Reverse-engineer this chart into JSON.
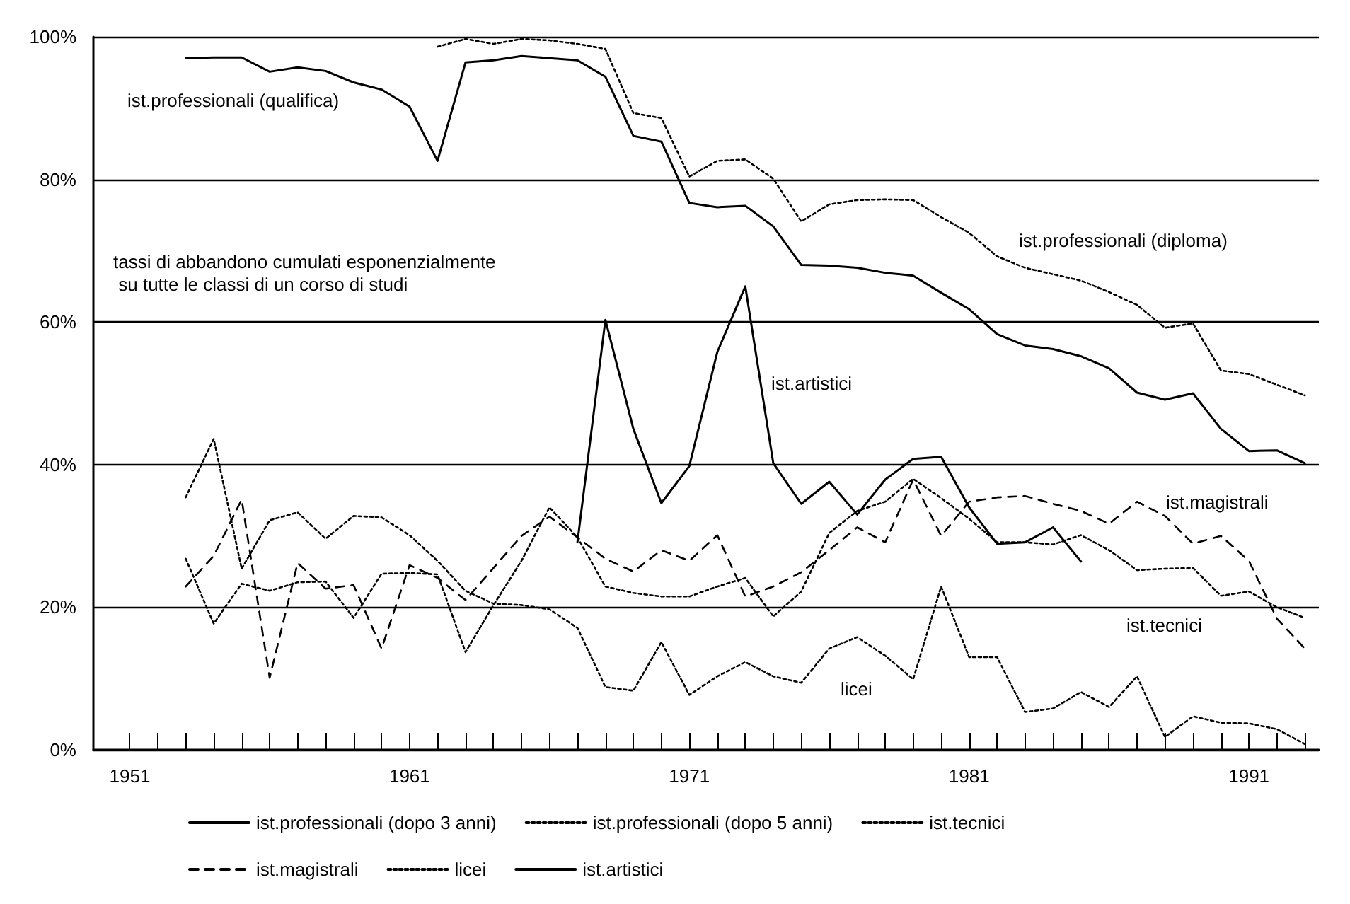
{
  "chart_data": {
    "type": "line",
    "x": [
      1953,
      1954,
      1955,
      1956,
      1957,
      1958,
      1959,
      1960,
      1961,
      1962,
      1963,
      1964,
      1965,
      1966,
      1967,
      1968,
      1969,
      1970,
      1971,
      1972,
      1973,
      1974,
      1975,
      1976,
      1977,
      1978,
      1979,
      1980,
      1981,
      1982,
      1983,
      1984,
      1985,
      1986,
      1987,
      1988,
      1989,
      1990,
      1991,
      1992,
      1993
    ],
    "series": [
      {
        "name": "ist.professionali (dopo 3 anni)",
        "color": "#000000",
        "line_style": "solid",
        "values": [
          97.0,
          97.1,
          97.1,
          95.1,
          95.7,
          95.2,
          93.6,
          92.6,
          90.2,
          82.6,
          96.4,
          96.7,
          97.3,
          97.0,
          96.7,
          94.4,
          86.1,
          85.3,
          76.7,
          76.1,
          76.3,
          73.4,
          68.0,
          67.9,
          67.6,
          66.9,
          66.5,
          64.1,
          61.8,
          58.3,
          56.7,
          56.2,
          55.2,
          53.5,
          50.1,
          49.1,
          50.0,
          45.0,
          41.9,
          42.0,
          40.2
        ]
      },
      {
        "name": "ist.professionali (dopo 5 anni)",
        "color": "#000000",
        "line_style": "dotted",
        "values": [
          null,
          null,
          null,
          null,
          null,
          null,
          null,
          null,
          null,
          98.6,
          99.7,
          99.0,
          99.7,
          99.5,
          99.0,
          98.3,
          89.3,
          88.6,
          80.4,
          82.6,
          82.8,
          80.1,
          74.1,
          76.5,
          77.1,
          77.2,
          77.1,
          74.7,
          72.5,
          69.2,
          67.6,
          66.7,
          65.8,
          64.2,
          62.4,
          59.2,
          59.8,
          53.2,
          52.7,
          51.2,
          49.7
        ]
      },
      {
        "name": "ist.tecnici",
        "color": "#000000",
        "line_style": "dotted",
        "values": [
          26.8,
          17.7,
          23.3,
          22.3,
          23.5,
          23.6,
          18.5,
          24.7,
          24.8,
          24.6,
          13.7,
          20.3,
          26.5,
          34.0,
          29.8,
          22.9,
          22.0,
          21.5,
          21.5,
          22.9,
          24.1,
          18.7,
          22.2,
          30.4,
          33.5,
          34.8,
          38.0,
          35.3,
          32.4,
          29.1,
          29.1,
          28.8,
          30.1,
          28.0,
          25.2,
          25.4,
          25.5,
          21.6,
          22.2,
          20.0,
          18.5
        ]
      },
      {
        "name": "ist.magistrali",
        "color": "#000000",
        "line_style": "dashed",
        "values": [
          22.9,
          27.2,
          35.1,
          10.1,
          26.2,
          22.6,
          23.1,
          14.2,
          25.9,
          24.1,
          21.0,
          25.5,
          30.0,
          32.7,
          29.8,
          26.8,
          25.0,
          28.0,
          26.5,
          30.1,
          21.5,
          22.9,
          24.9,
          28.0,
          31.2,
          29.1,
          37.9,
          30.0,
          34.8,
          35.4,
          35.6,
          34.5,
          33.5,
          31.7,
          34.8,
          32.8,
          28.9,
          30.0,
          26.5,
          18.4,
          14.2
        ]
      },
      {
        "name": "licei",
        "color": "#000000",
        "line_style": "dotted",
        "values": [
          35.4,
          43.6,
          25.4,
          32.2,
          33.3,
          29.6,
          32.8,
          32.6,
          30.1,
          26.5,
          22.3,
          20.5,
          20.3,
          19.7,
          17.1,
          8.8,
          8.3,
          15.1,
          7.7,
          10.3,
          12.3,
          10.3,
          9.4,
          14.2,
          15.8,
          13.2,
          9.9,
          22.9,
          13.0,
          13.0,
          5.3,
          5.8,
          8.1,
          6.0,
          10.3,
          1.8,
          4.7,
          3.8,
          3.7,
          2.9,
          0.8
        ]
      },
      {
        "name": "ist.artistici",
        "color": "#000000",
        "line_style": "solid",
        "values": [
          null,
          null,
          null,
          null,
          null,
          null,
          null,
          null,
          null,
          null,
          null,
          null,
          null,
          null,
          29.1,
          60.3,
          45.0,
          34.6,
          39.8,
          55.8,
          65.0,
          40.2,
          34.5,
          37.6,
          33.0,
          37.9,
          40.8,
          41.1,
          34.0,
          28.9,
          29.1,
          31.2,
          26.4,
          null,
          null,
          null,
          null,
          null,
          null,
          null,
          null
        ]
      }
    ],
    "xlim": [
      1949.7,
      1993.5
    ],
    "xticks": [
      1951,
      {
        "value": 1952,
        "label": null
      },
      {
        "value": 1953,
        "label": null
      },
      {
        "value": 1954,
        "label": null
      },
      {
        "value": 1955,
        "label": null
      },
      {
        "value": 1956,
        "label": null
      },
      {
        "value": 1957,
        "label": null
      },
      {
        "value": 1958,
        "label": null
      },
      {
        "value": 1959,
        "label": null
      },
      {
        "value": 1960,
        "label": null
      },
      1961,
      {
        "value": 1962,
        "label": null
      },
      {
        "value": 1963,
        "label": null
      },
      {
        "value": 1964,
        "label": null
      },
      {
        "value": 1965,
        "label": null
      },
      {
        "value": 1966,
        "label": null
      },
      {
        "value": 1967,
        "label": null
      },
      {
        "value": 1968,
        "label": null
      },
      {
        "value": 1969,
        "label": null
      },
      {
        "value": 1970,
        "label": null
      },
      1971,
      {
        "value": 1972,
        "label": null
      },
      {
        "value": 1973,
        "label": null
      },
      {
        "value": 1974,
        "label": null
      },
      {
        "value": 1975,
        "label": null
      },
      {
        "value": 1976,
        "label": null
      },
      {
        "value": 1977,
        "label": null
      },
      {
        "value": 1978,
        "label": null
      },
      {
        "value": 1979,
        "label": null
      },
      {
        "value": 1980,
        "label": null
      },
      1981,
      {
        "value": 1982,
        "label": null
      },
      {
        "value": 1983,
        "label": null
      },
      {
        "value": 1984,
        "label": null
      },
      {
        "value": 1985,
        "label": null
      },
      {
        "value": 1986,
        "label": null
      },
      {
        "value": 1987,
        "label": null
      },
      {
        "value": 1988,
        "label": null
      },
      {
        "value": 1989,
        "label": null
      },
      {
        "value": 1990,
        "label": null
      },
      1991,
      {
        "value": 1992,
        "label": null
      },
      {
        "value": 1993,
        "label": null
      }
    ],
    "ylim": [
      0,
      100
    ],
    "yticks": [
      {
        "value": 0,
        "label": "0%"
      },
      {
        "value": 20,
        "label": "20%"
      },
      {
        "value": 40,
        "label": "40%"
      },
      {
        "value": 60,
        "label": "60%"
      },
      {
        "value": 80,
        "label": "80%"
      },
      {
        "value": 100,
        "label": "100%"
      }
    ],
    "grid": "y",
    "legend": "bottom",
    "marker": "none",
    "annotations": [
      "ist.professionali (qualifica)",
      "tassi di abbandono cumulati esponenzialmente\n su tutte le classi di un corso di studi",
      "ist.professionali (diploma)",
      "ist.artistici",
      "ist.magistrali",
      "ist.tecnici",
      "licei"
    ]
  }
}
